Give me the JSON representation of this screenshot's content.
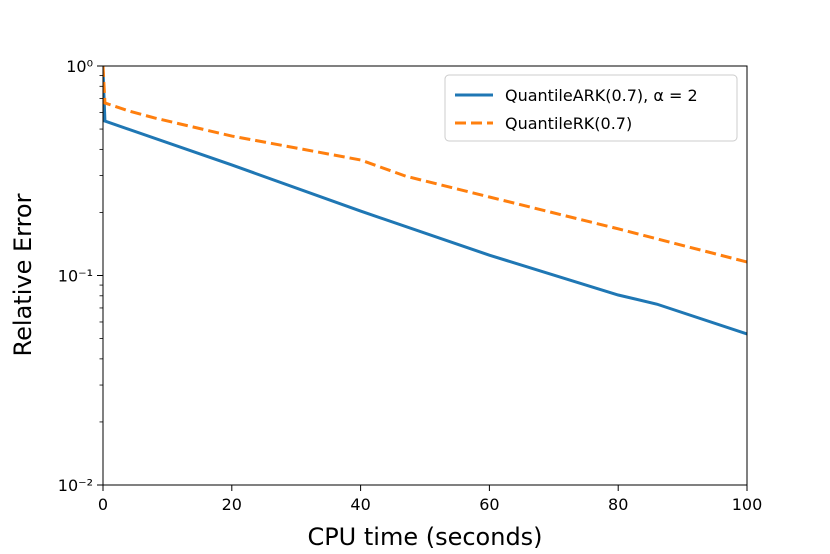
{
  "chart_data": {
    "type": "line",
    "xlabel": "CPU time (seconds)",
    "ylabel": "Relative Error",
    "xlim": [
      0,
      100
    ],
    "xticks": [
      0,
      20,
      40,
      60,
      80,
      100
    ],
    "ylim": [
      0.01,
      1
    ],
    "log_y": true,
    "yticks": [
      {
        "value": 0.01,
        "label": "10⁻²"
      },
      {
        "value": 0.1,
        "label": "10⁻¹"
      },
      {
        "value": 1,
        "label": "10⁰"
      }
    ],
    "legend": "upper right",
    "series": [
      {
        "name": "QuantileARK(0.7), α = 2",
        "color": "#1f77b4",
        "dash": false,
        "x": [
          0,
          0.3,
          20,
          40,
          60,
          80,
          86,
          100
        ],
        "values": [
          0.95,
          0.546,
          0.337,
          0.203,
          0.125,
          0.0807,
          0.073,
          0.0526
        ]
      },
      {
        "name": "QuantileRK(0.7)",
        "color": "#ff7f0e",
        "dash": true,
        "x": [
          0,
          0.3,
          4,
          8,
          20,
          40,
          47,
          60,
          80,
          100
        ],
        "values": [
          1.0,
          0.666,
          0.61,
          0.565,
          0.463,
          0.356,
          0.298,
          0.237,
          0.167,
          0.116
        ]
      }
    ]
  }
}
